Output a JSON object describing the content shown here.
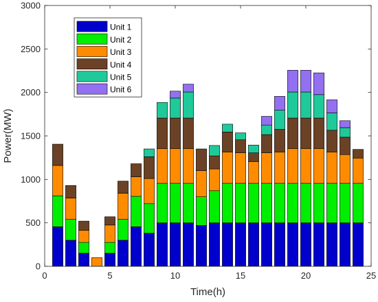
{
  "chart_data": {
    "type": "bar",
    "stacked": true,
    "title": "",
    "xlabel": "Time(h)",
    "ylabel": "Power(MW)",
    "xlim": [
      0,
      25
    ],
    "ylim": [
      0,
      3000
    ],
    "xticks": [
      0,
      5,
      10,
      15,
      20,
      25
    ],
    "yticks": [
      0,
      500,
      1000,
      1500,
      2000,
      2500,
      3000
    ],
    "grid": false,
    "legend_position": "top-left",
    "x": [
      1,
      2,
      3,
      4,
      5,
      6,
      7,
      8,
      9,
      10,
      11,
      12,
      13,
      14,
      15,
      16,
      17,
      18,
      19,
      20,
      21,
      22,
      23,
      24
    ],
    "series": [
      {
        "name": "Unit 1",
        "color": "#0000CD",
        "values": [
          455,
          300,
          150,
          0,
          150,
          300,
          455,
          380,
          500,
          500,
          500,
          470,
          500,
          500,
          500,
          500,
          500,
          500,
          500,
          500,
          500,
          500,
          500,
          500
        ]
      },
      {
        "name": "Unit 2",
        "color": "#00EE00",
        "values": [
          355,
          240,
          125,
          0,
          125,
          240,
          350,
          340,
          455,
          455,
          455,
          330,
          370,
          455,
          455,
          455,
          455,
          455,
          455,
          455,
          455,
          455,
          455,
          455
        ]
      },
      {
        "name": "Unit 3",
        "color": "#FF8C00",
        "values": [
          350,
          245,
          140,
          100,
          200,
          300,
          225,
          290,
          400,
          400,
          400,
          300,
          250,
          360,
          350,
          250,
          350,
          360,
          400,
          400,
          400,
          360,
          330,
          290
        ]
      },
      {
        "name": "Unit 4",
        "color": "#6B4226",
        "values": [
          245,
          145,
          105,
          0,
          95,
          140,
          150,
          250,
          350,
          350,
          350,
          250,
          150,
          230,
          150,
          100,
          210,
          260,
          350,
          350,
          350,
          250,
          200,
          100
        ]
      },
      {
        "name": "Unit 5",
        "color": "#20C99A",
        "values": [
          0,
          0,
          0,
          0,
          0,
          0,
          0,
          90,
          180,
          230,
          300,
          0,
          120,
          90,
          80,
          90,
          110,
          220,
          300,
          300,
          270,
          200,
          110,
          0
        ]
      },
      {
        "name": "Unit 6",
        "color": "#9370F0",
        "values": [
          0,
          0,
          0,
          0,
          0,
          0,
          0,
          0,
          0,
          80,
          90,
          0,
          0,
          0,
          0,
          0,
          100,
          160,
          250,
          250,
          250,
          150,
          80,
          0
        ]
      }
    ]
  }
}
